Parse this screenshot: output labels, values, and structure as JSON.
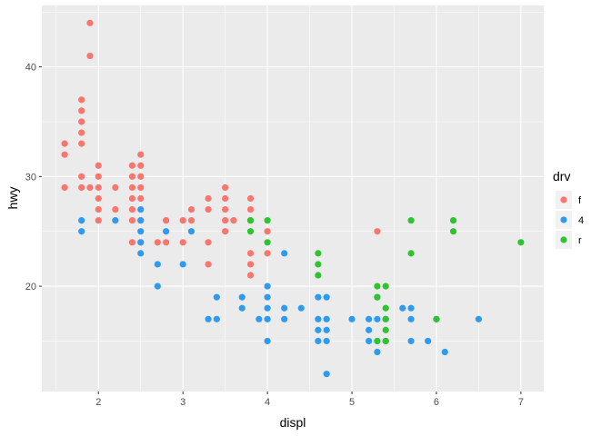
{
  "chart_data": {
    "type": "scatter",
    "xlabel": "displ",
    "ylabel": "hwy",
    "xlim": [
      1.33,
      7.27
    ],
    "ylim": [
      10.4,
      45.6
    ],
    "x_ticks": [
      2,
      3,
      4,
      5,
      6,
      7
    ],
    "y_ticks": [
      20,
      30,
      40
    ],
    "grid": true,
    "legend": {
      "title": "drv",
      "position": "right",
      "entries": [
        {
          "label": "f",
          "color": "#F8766D"
        },
        {
          "label": "4",
          "color": "#2E9BF0"
        },
        {
          "label": "r",
          "color": "#2FC42F"
        }
      ]
    },
    "series": [
      {
        "name": "f",
        "color": "#F8766D",
        "points": [
          [
            1.6,
            33
          ],
          [
            1.6,
            32
          ],
          [
            1.6,
            29
          ],
          [
            1.8,
            37
          ],
          [
            1.8,
            36
          ],
          [
            1.8,
            35
          ],
          [
            1.8,
            34
          ],
          [
            1.8,
            33
          ],
          [
            1.8,
            30
          ],
          [
            1.8,
            29
          ],
          [
            1.9,
            44
          ],
          [
            1.9,
            41
          ],
          [
            1.9,
            29
          ],
          [
            2.0,
            31
          ],
          [
            2.0,
            30
          ],
          [
            2.0,
            29
          ],
          [
            2.0,
            28
          ],
          [
            2.0,
            27
          ],
          [
            2.0,
            26
          ],
          [
            2.2,
            29
          ],
          [
            2.2,
            27
          ],
          [
            2.4,
            31
          ],
          [
            2.4,
            30
          ],
          [
            2.4,
            29
          ],
          [
            2.4,
            28
          ],
          [
            2.4,
            27
          ],
          [
            2.4,
            26
          ],
          [
            2.4,
            24
          ],
          [
            2.5,
            32
          ],
          [
            2.5,
            31
          ],
          [
            2.5,
            30
          ],
          [
            2.5,
            29
          ],
          [
            2.5,
            28
          ],
          [
            2.5,
            26
          ],
          [
            2.5,
            24
          ],
          [
            2.7,
            24
          ],
          [
            2.8,
            26
          ],
          [
            2.8,
            24
          ],
          [
            3.0,
            26
          ],
          [
            3.0,
            24
          ],
          [
            3.1,
            27
          ],
          [
            3.1,
            26
          ],
          [
            3.3,
            28
          ],
          [
            3.3,
            27
          ],
          [
            3.3,
            24
          ],
          [
            3.3,
            22
          ],
          [
            3.5,
            29
          ],
          [
            3.5,
            28
          ],
          [
            3.5,
            27
          ],
          [
            3.5,
            26
          ],
          [
            3.5,
            25
          ],
          [
            3.6,
            26
          ],
          [
            3.8,
            28
          ],
          [
            3.8,
            27
          ],
          [
            3.8,
            26
          ],
          [
            3.8,
            23
          ],
          [
            3.8,
            22
          ],
          [
            3.8,
            21
          ],
          [
            4.0,
            25
          ],
          [
            4.0,
            23
          ],
          [
            5.3,
            25
          ]
        ]
      },
      {
        "name": "4",
        "color": "#2E9BF0",
        "points": [
          [
            1.8,
            26
          ],
          [
            1.8,
            25
          ],
          [
            2.2,
            26
          ],
          [
            2.5,
            27
          ],
          [
            2.5,
            26
          ],
          [
            2.5,
            25
          ],
          [
            2.5,
            24
          ],
          [
            2.5,
            23
          ],
          [
            2.7,
            22
          ],
          [
            2.7,
            20
          ],
          [
            2.8,
            25
          ],
          [
            3.0,
            22
          ],
          [
            3.1,
            25
          ],
          [
            3.3,
            17
          ],
          [
            3.4,
            19
          ],
          [
            3.4,
            17
          ],
          [
            3.7,
            19
          ],
          [
            3.7,
            18
          ],
          [
            3.9,
            17
          ],
          [
            4.0,
            20
          ],
          [
            4.0,
            19
          ],
          [
            4.0,
            18
          ],
          [
            4.0,
            17
          ],
          [
            4.0,
            15
          ],
          [
            4.2,
            23
          ],
          [
            4.2,
            18
          ],
          [
            4.2,
            17
          ],
          [
            4.4,
            18
          ],
          [
            4.6,
            19
          ],
          [
            4.6,
            17
          ],
          [
            4.6,
            16
          ],
          [
            4.6,
            15
          ],
          [
            4.7,
            19
          ],
          [
            4.7,
            17
          ],
          [
            4.7,
            16
          ],
          [
            4.7,
            15
          ],
          [
            4.7,
            12
          ],
          [
            5.0,
            17
          ],
          [
            5.2,
            17
          ],
          [
            5.2,
            16
          ],
          [
            5.2,
            15
          ],
          [
            5.3,
            19
          ],
          [
            5.3,
            17
          ],
          [
            5.3,
            15
          ],
          [
            5.3,
            14
          ],
          [
            5.4,
            17
          ],
          [
            5.4,
            15
          ],
          [
            5.6,
            18
          ],
          [
            5.7,
            18
          ],
          [
            5.7,
            17
          ],
          [
            5.7,
            15
          ],
          [
            5.9,
            15
          ],
          [
            6.0,
            17
          ],
          [
            6.1,
            14
          ],
          [
            6.5,
            17
          ]
        ]
      },
      {
        "name": "r",
        "color": "#2FC42F",
        "points": [
          [
            3.8,
            26
          ],
          [
            3.8,
            25
          ],
          [
            4.0,
            26
          ],
          [
            4.0,
            24
          ],
          [
            4.6,
            23
          ],
          [
            4.6,
            22
          ],
          [
            4.6,
            21
          ],
          [
            5.3,
            20
          ],
          [
            5.3,
            19
          ],
          [
            5.3,
            15
          ],
          [
            5.4,
            20
          ],
          [
            5.4,
            18
          ],
          [
            5.4,
            17
          ],
          [
            5.4,
            16
          ],
          [
            5.4,
            15
          ],
          [
            5.7,
            26
          ],
          [
            5.7,
            23
          ],
          [
            6.0,
            17
          ],
          [
            6.2,
            26
          ],
          [
            6.2,
            25
          ],
          [
            7.0,
            24
          ]
        ]
      }
    ]
  }
}
